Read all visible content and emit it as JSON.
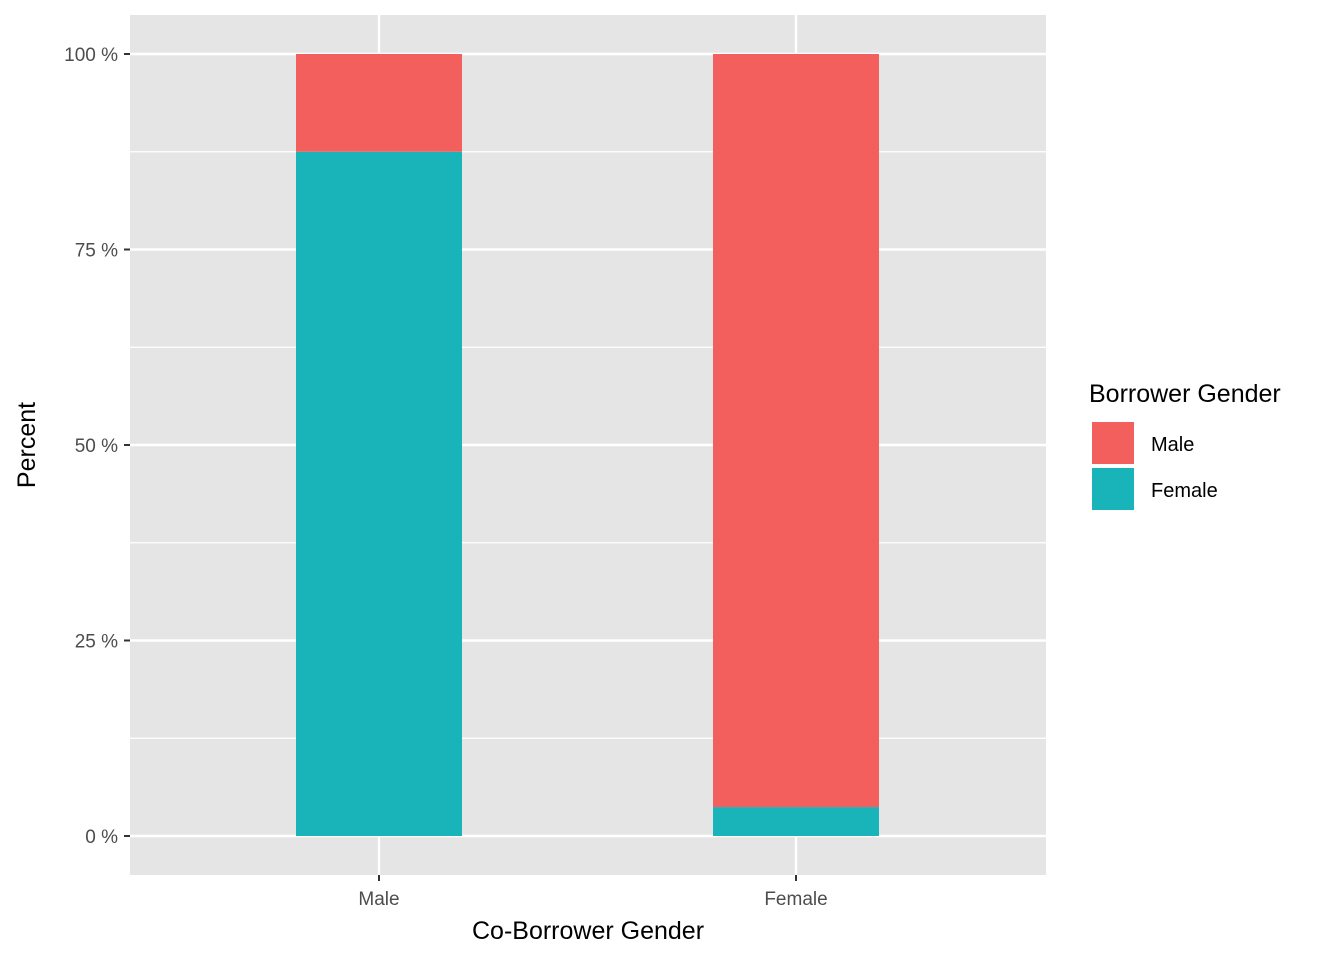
{
  "chart_data": {
    "type": "bar",
    "stacked": true,
    "categories": [
      "Male",
      "Female"
    ],
    "series": [
      {
        "name": "Male",
        "color": "#F25F5C",
        "values": [
          12.5,
          96.3
        ]
      },
      {
        "name": "Female",
        "color": "#19B4B9",
        "values": [
          87.5,
          3.7
        ]
      }
    ],
    "y_ticks": [
      0,
      25,
      50,
      75,
      100
    ],
    "y_tick_labels": [
      "0 %",
      "25 %",
      "50 %",
      "75 %",
      "100 %"
    ],
    "ylim": [
      0,
      100
    ],
    "xlabel": "Co-Borrower Gender",
    "ylabel": "Percent",
    "legend": {
      "title": "Borrower Gender",
      "position": "right"
    },
    "grid": true,
    "panel_background": "#E5E5E5"
  }
}
